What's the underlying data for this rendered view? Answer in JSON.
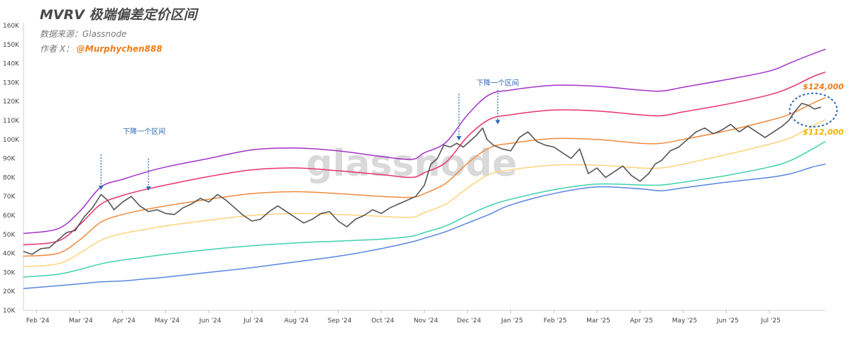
{
  "header": {
    "title": "MVRV 极端偏差定价区间",
    "source": "数据来源：Glassnode",
    "author_prefix": "作者 X：",
    "author_handle": "@Murphychen888"
  },
  "watermark": "glassnode",
  "colors": {
    "price": "#555555",
    "band_purple": "#a232c8",
    "band_pink": "#e8336e",
    "band_orange": "#f08a3c",
    "band_yellow": "#ffd27a",
    "band_teal": "#3fd1ad",
    "band_blue": "#5b86e0",
    "annotation": "#2a67b5"
  },
  "chart_data": {
    "type": "line",
    "title": "MVRV 极端偏差定价区间",
    "xlabel": "",
    "ylabel": "",
    "ylim": [
      10000,
      160000
    ],
    "y_ticks": [
      "10K",
      "20K",
      "30K",
      "40K",
      "50K",
      "60K",
      "70K",
      "80K",
      "90K",
      "100K",
      "110K",
      "120K",
      "130K",
      "140K",
      "150K",
      "160K"
    ],
    "x_ticks": [
      "Feb '24",
      "Mar '24",
      "Apr '24",
      "May '24",
      "Jun '24",
      "Jul '24",
      "Aug '24",
      "Sep '24",
      "Oct '24",
      "Nov '24",
      "Dec '24",
      "Jan '25",
      "Feb '25",
      "Mar '25",
      "Apr '25",
      "May '25",
      "Jun '25",
      "Jul '25"
    ],
    "x_tick_positions_month_index": [
      0,
      1,
      2,
      3,
      4,
      5,
      6,
      7,
      8,
      9,
      10,
      11,
      12,
      13,
      14,
      15,
      16,
      17
    ],
    "x_range_month_index": [
      -0.3,
      18.3
    ],
    "series": [
      {
        "name": "",
        "color_key": "band_purple",
        "x": [
          -0.3,
          0.5,
          1.0,
          1.5,
          2.0,
          2.5,
          3.0,
          4.0,
          5.0,
          6.0,
          7.0,
          8.0,
          8.7,
          9.0,
          9.5,
          10.0,
          10.5,
          11.0,
          12.0,
          13.0,
          14.0,
          14.5,
          15.0,
          16.0,
          17.0,
          17.5,
          18.0,
          18.3
        ],
        "y": [
          50500,
          53000,
          62000,
          75000,
          79000,
          82500,
          85500,
          90000,
          94500,
          95500,
          94000,
          91000,
          89500,
          93000,
          98500,
          113000,
          123500,
          126000,
          128500,
          128000,
          126000,
          125500,
          127500,
          131500,
          136000,
          140500,
          145000,
          147500
        ]
      },
      {
        "name": "",
        "color_key": "band_pink",
        "x": [
          -0.3,
          0.5,
          1.0,
          1.5,
          2.0,
          2.5,
          3.0,
          4.0,
          5.0,
          6.0,
          7.0,
          8.0,
          8.7,
          9.0,
          9.5,
          10.0,
          10.5,
          11.0,
          12.0,
          13.0,
          14.0,
          14.5,
          15.0,
          16.0,
          17.0,
          17.5,
          18.0,
          18.3
        ],
        "y": [
          44500,
          46500,
          55000,
          66000,
          70500,
          73500,
          76000,
          80500,
          84000,
          85000,
          83500,
          81500,
          80000,
          82500,
          88000,
          101500,
          110500,
          113000,
          115500,
          115000,
          113000,
          112500,
          114500,
          118500,
          123500,
          127500,
          133000,
          135500
        ]
      },
      {
        "name": "",
        "color_key": "band_orange",
        "x": [
          -0.3,
          0.5,
          1.0,
          1.5,
          2.0,
          2.5,
          3.0,
          4.0,
          5.0,
          6.0,
          7.0,
          8.0,
          8.7,
          9.0,
          9.5,
          10.0,
          10.5,
          11.0,
          12.0,
          13.0,
          14.0,
          14.5,
          15.0,
          16.0,
          17.0,
          17.5,
          18.0,
          18.3
        ],
        "y": [
          38500,
          40000,
          47000,
          56500,
          60500,
          63000,
          65000,
          68500,
          71500,
          72500,
          71500,
          70000,
          69500,
          71500,
          77000,
          87500,
          95500,
          98000,
          100500,
          100000,
          98000,
          98000,
          100000,
          104500,
          110000,
          113500,
          119000,
          122000
        ]
      },
      {
        "name": "",
        "color_key": "band_yellow",
        "x": [
          -0.3,
          0.5,
          1.0,
          1.5,
          2.0,
          2.5,
          3.0,
          4.0,
          5.0,
          6.0,
          7.0,
          8.0,
          8.7,
          9.0,
          9.5,
          10.0,
          10.5,
          11.0,
          12.0,
          13.0,
          14.0,
          14.5,
          15.0,
          16.0,
          17.0,
          17.5,
          18.0,
          18.3
        ],
        "y": [
          33000,
          34500,
          40000,
          47000,
          50500,
          52500,
          54500,
          57500,
          60000,
          61000,
          60500,
          59500,
          59000,
          61500,
          66000,
          74500,
          81500,
          84000,
          86500,
          86500,
          85000,
          85000,
          87000,
          92000,
          97500,
          101000,
          107000,
          110500
        ]
      },
      {
        "name": "",
        "color_key": "band_teal",
        "x": [
          -0.3,
          0.5,
          1.0,
          1.5,
          2.0,
          2.5,
          3.0,
          4.0,
          5.0,
          6.0,
          7.0,
          8.0,
          8.7,
          9.0,
          9.5,
          10.0,
          10.5,
          11.0,
          12.0,
          13.0,
          14.0,
          14.5,
          15.0,
          16.0,
          17.0,
          17.5,
          18.0,
          18.3
        ],
        "y": [
          27500,
          29000,
          31500,
          34500,
          36500,
          38000,
          39500,
          42000,
          44000,
          45500,
          46500,
          47500,
          49000,
          51000,
          54500,
          60000,
          65000,
          68500,
          73500,
          76500,
          76000,
          76000,
          77500,
          81000,
          85500,
          89000,
          95000,
          99000
        ]
      },
      {
        "name": "",
        "color_key": "band_blue",
        "x": [
          -0.3,
          0.5,
          1.0,
          1.5,
          2.0,
          2.5,
          3.0,
          4.0,
          5.0,
          6.0,
          7.0,
          8.0,
          8.7,
          9.0,
          9.5,
          10.0,
          10.5,
          11.0,
          12.0,
          13.0,
          14.0,
          14.5,
          15.0,
          16.0,
          17.0,
          17.5,
          18.0,
          18.3
        ],
        "y": [
          21500,
          23000,
          24000,
          25000,
          25500,
          26500,
          27500,
          30000,
          32500,
          35500,
          38500,
          42500,
          46000,
          48000,
          51500,
          56000,
          60500,
          65500,
          71500,
          75000,
          74000,
          73000,
          74500,
          77500,
          80000,
          82000,
          85500,
          87000
        ]
      },
      {
        "name": "",
        "color_key": "price",
        "x": [
          -0.3,
          -0.1,
          0.1,
          0.3,
          0.5,
          0.7,
          0.9,
          1.1,
          1.3,
          1.5,
          1.65,
          1.8,
          2.0,
          2.2,
          2.4,
          2.6,
          2.8,
          3.0,
          3.2,
          3.4,
          3.6,
          3.8,
          4.0,
          4.2,
          4.4,
          4.6,
          4.8,
          5.0,
          5.2,
          5.4,
          5.6,
          5.8,
          6.0,
          6.2,
          6.4,
          6.6,
          6.8,
          7.0,
          7.2,
          7.4,
          7.6,
          7.8,
          8.0,
          8.2,
          8.4,
          8.6,
          8.8,
          9.0,
          9.15,
          9.3,
          9.45,
          9.6,
          9.75,
          9.9,
          10.05,
          10.2,
          10.35,
          10.45,
          10.6,
          10.8,
          11.0,
          11.2,
          11.4,
          11.6,
          11.8,
          12.0,
          12.2,
          12.4,
          12.6,
          12.8,
          13.0,
          13.2,
          13.4,
          13.6,
          13.8,
          14.0,
          14.2,
          14.35,
          14.5,
          14.7,
          14.9,
          15.1,
          15.3,
          15.5,
          15.7,
          15.9,
          16.1,
          16.3,
          16.5,
          16.7,
          16.9,
          17.1,
          17.3,
          17.45,
          17.6,
          17.75,
          17.9,
          18.05,
          18.2
        ],
        "y": [
          41000,
          39500,
          42500,
          43000,
          47000,
          51000,
          52000,
          59000,
          64000,
          71000,
          68000,
          63000,
          67000,
          70000,
          65000,
          62000,
          63000,
          61000,
          60500,
          64000,
          66000,
          69000,
          67000,
          71000,
          68000,
          64000,
          60000,
          57000,
          58000,
          62000,
          65000,
          62000,
          59000,
          56000,
          58000,
          61000,
          62000,
          57000,
          54000,
          58000,
          60000,
          63000,
          61000,
          64000,
          66000,
          68000,
          70000,
          76000,
          87000,
          90000,
          97000,
          96000,
          98000,
          96000,
          99000,
          102000,
          106000,
          100000,
          97000,
          95000,
          94000,
          101000,
          104000,
          99000,
          97000,
          96000,
          93000,
          90000,
          95000,
          82000,
          85000,
          80000,
          83000,
          86000,
          81000,
          78000,
          82000,
          87000,
          89000,
          94000,
          96000,
          100000,
          104000,
          106000,
          103000,
          105000,
          108000,
          104000,
          107000,
          104000,
          101000,
          104000,
          107000,
          110000,
          115000,
          119000,
          118000,
          116000,
          117000
        ]
      }
    ],
    "annotations": [
      {
        "text": "下降一个区间",
        "x": 2.5,
        "y": 103000
      },
      {
        "text": "下降一个区间",
        "x": 10.7,
        "y": 128500
      },
      {
        "text": "$124,000",
        "x": 18.25,
        "y": 126500
      },
      {
        "text": "$112,000",
        "x": 18.25,
        "y": 102500
      }
    ],
    "arrows": [
      {
        "x": 1.5,
        "y_from": 92000,
        "y_to": 73500
      },
      {
        "x": 2.6,
        "y_from": 90000,
        "y_to": 73000
      },
      {
        "x": 9.8,
        "y_from": 124000,
        "y_to": 99500
      },
      {
        "x": 10.7,
        "y_from": 126000,
        "y_to": 108000
      }
    ],
    "highlight": {
      "x_center": 18.02,
      "y_center": 115500,
      "x_radius": 0.55,
      "y_radius": 8800
    },
    "grid": false,
    "legend": "none"
  }
}
